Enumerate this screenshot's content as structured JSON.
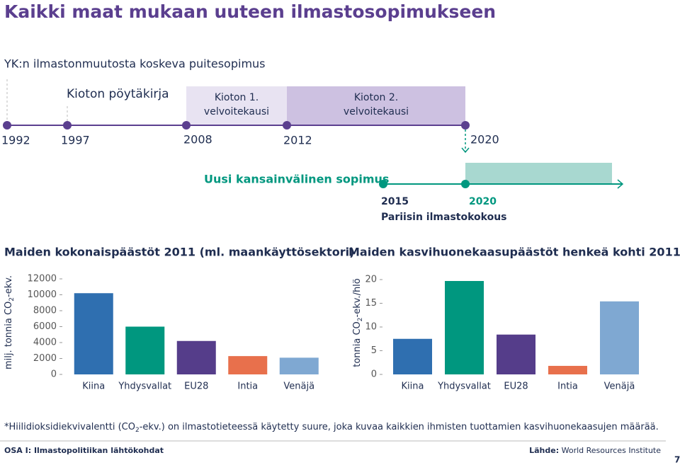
{
  "title": "Kaikki maat mukaan uuteen ilmastosopimukseen",
  "timeline": {
    "heading": "YK:n ilmastonmuutosta koskeva puitesopimus",
    "kyoto": "Kioton pöytäkirja",
    "period1": [
      "Kioton 1.",
      "velvoitekausi"
    ],
    "period2": [
      "Kioton 2.",
      "velvoitekausi"
    ],
    "years": [
      "1992",
      "1997",
      "2008",
      "2012",
      "2020"
    ],
    "new_agreement": "Uusi kansainvälinen sopimus",
    "new_years": [
      "2015",
      "2020"
    ],
    "paris": "Pariisin ilmastokokous"
  },
  "chart_data": [
    {
      "type": "bar",
      "title": "Maiden kokonaispäästöt 2011 (ml. maankäyttösektori)",
      "ylabel": [
        "milj. tonnia CO",
        "2",
        "-ekv."
      ],
      "categories": [
        "Kiina",
        "Yhdysvallat",
        "EU28",
        "Intia",
        "Venäjä"
      ],
      "values": [
        10200,
        6000,
        4200,
        2300,
        2100
      ],
      "colors": [
        "#2f6fb0",
        "#00977f",
        "#553d8a",
        "#e8704c",
        "#7fa8d2"
      ],
      "ylim": [
        0,
        12000
      ],
      "yticks": [
        0,
        2000,
        4000,
        6000,
        8000,
        10000,
        12000
      ]
    },
    {
      "type": "bar",
      "title": "Maiden kasvihuonekaasupäästöt henkeä kohti 2011",
      "ylabel": [
        "tonnia CO",
        "2",
        "-ekv./hlö"
      ],
      "categories": [
        "Kiina",
        "Yhdysvallat",
        "EU28",
        "Intia",
        "Venäjä"
      ],
      "values": [
        7.5,
        19.7,
        8.4,
        1.8,
        15.4
      ],
      "colors": [
        "#2f6fb0",
        "#00977f",
        "#553d8a",
        "#e8704c",
        "#7fa8d2"
      ],
      "ylim": [
        0,
        20
      ],
      "yticks": [
        0,
        5,
        10,
        15,
        20
      ]
    }
  ],
  "footnote": [
    "*Hiilidioksidiekvivalentti (CO",
    "2",
    "-ekv.) on ilmastotieteessä käytetty suure, joka kuvaa kaikkien ihmisten tuottamien kasvihuonekaasujen määrää."
  ],
  "footer": {
    "section": "OSA I: Ilmastopolitiikan lähtökohdat",
    "source_label": "Lähde:",
    "source": "World Resources Institute",
    "page": "7"
  }
}
